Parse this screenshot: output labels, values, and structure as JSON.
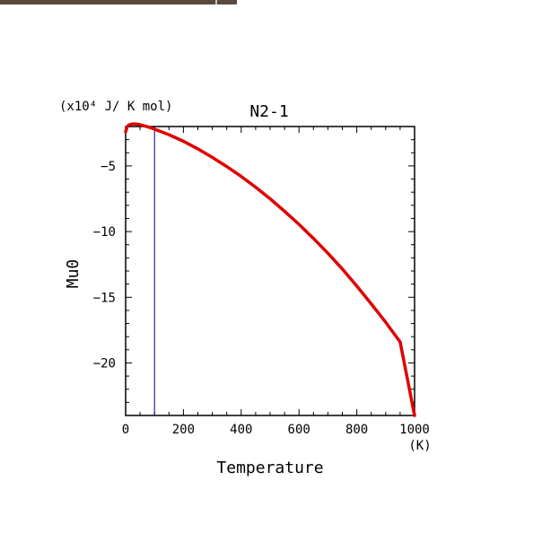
{
  "window": {
    "accent": "#5a4a3e"
  },
  "chart_data": {
    "type": "line",
    "title": "N2-1",
    "unit_label": "(x10⁴ J/ K mol)",
    "xlabel": "Temperature",
    "xunit": "(K)",
    "ylabel": "Mu0",
    "xlim": [
      0,
      1000
    ],
    "ylim": [
      -24,
      -2
    ],
    "xticks": [
      0,
      200,
      400,
      600,
      800,
      1000
    ],
    "yticks": [
      -5,
      -10,
      -15,
      -20
    ],
    "grid": false,
    "series": [
      {
        "color": "#e00000",
        "x": [
          0,
          5,
          10,
          15,
          20,
          25,
          30,
          40,
          50,
          60,
          80,
          100,
          150,
          200,
          250,
          300,
          350,
          400,
          450,
          500,
          550,
          600,
          650,
          700,
          750,
          800,
          850,
          900,
          950,
          1000
        ],
        "y": [
          -2.4,
          -2.05,
          -1.9,
          -1.85,
          -1.82,
          -1.8,
          -1.8,
          -1.82,
          -1.86,
          -1.92,
          -2.05,
          -2.2,
          -2.62,
          -3.12,
          -3.7,
          -4.35,
          -5.05,
          -5.8,
          -6.62,
          -7.5,
          -8.45,
          -9.45,
          -10.52,
          -11.65,
          -12.85,
          -14.15,
          -15.5,
          -16.9,
          -18.4,
          -24.0
        ]
      }
    ],
    "vlines": [
      {
        "x": 100,
        "color": "#000080"
      }
    ]
  }
}
